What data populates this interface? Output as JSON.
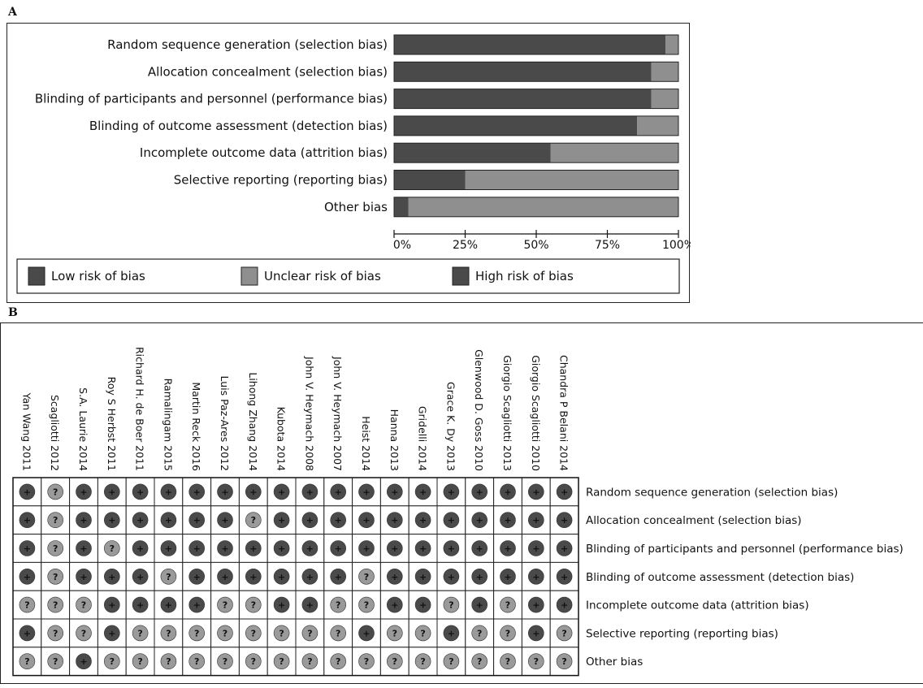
{
  "colors": {
    "low": "#4a4a4a",
    "unclear": "#8f8f8f",
    "high": "#4a4a4a",
    "bar_edge": "#222222"
  },
  "panel_a": {
    "letter": "A"
  },
  "panel_b": {
    "letter": "B"
  },
  "chart_data": [
    {
      "type": "bar",
      "orientation": "horizontal",
      "stacked": true,
      "categories": [
        "Random sequence generation (selection bias)",
        "Allocation concealment (selection bias)",
        "Blinding of participants and personnel (performance bias)",
        "Blinding of outcome assessment (detection bias)",
        "Incomplete outcome data (attrition bias)",
        "Selective reporting (reporting bias)",
        "Other bias"
      ],
      "series": [
        {
          "name": "Low risk of bias",
          "values": [
            95.5,
            90.5,
            90.5,
            85.5,
            55,
            25,
            5
          ],
          "color": "#4a4a4a"
        },
        {
          "name": "Unclear risk of bias",
          "values": [
            4.5,
            9.5,
            9.5,
            14.5,
            45,
            75,
            95
          ],
          "color": "#8f8f8f"
        },
        {
          "name": "High risk of bias",
          "values": [
            0,
            0,
            0,
            0,
            0,
            0,
            0
          ],
          "color": "#4a4a4a"
        }
      ],
      "xticks": [
        "0%",
        "25%",
        "50%",
        "75%",
        "100%"
      ],
      "xlim": [
        0,
        100
      ],
      "legend_position": "bottom"
    },
    {
      "type": "table",
      "studies": [
        "Yan Wang 2011",
        "Scagliotti 2012",
        "S.A. Laurie 2014",
        "Roy S Herbst 2011",
        "Richard H. de Boer 2011",
        "Ramalingam 2015",
        "Martin Reck 2016",
        "Luis Paz-Ares 2012",
        "Lihong Zhang 2014",
        "Kubota 2014",
        "John V. Heymach 2008",
        "John V. Heymach 2007",
        "Heist 2014",
        "Hanna 2013",
        "Gridelli 2014",
        "Grace K. Dy 2013",
        "Glenwood D. Goss 2010",
        "Giorgio Scagliotti 2013",
        "Giorgio Scagliotti 2010",
        "Chandra P Belani 2014"
      ],
      "domains": [
        "Random sequence generation (selection bias)",
        "Allocation concealment (selection bias)",
        "Blinding of participants and personnel (performance bias)",
        "Blinding of outcome assessment (detection bias)",
        "Incomplete outcome data (attrition bias)",
        "Selective reporting (reporting bias)",
        "Other bias"
      ],
      "judgements": [
        [
          "+",
          "?",
          "+",
          "+",
          "+",
          "+",
          "+",
          "+",
          "+",
          "+",
          "+",
          "+",
          "+",
          "+",
          "+",
          "+",
          "+",
          "+",
          "+",
          "+"
        ],
        [
          "+",
          "?",
          "+",
          "+",
          "+",
          "+",
          "+",
          "+",
          "?",
          "+",
          "+",
          "+",
          "+",
          "+",
          "+",
          "+",
          "+",
          "+",
          "+",
          "+"
        ],
        [
          "+",
          "?",
          "+",
          "?",
          "+",
          "+",
          "+",
          "+",
          "+",
          "+",
          "+",
          "+",
          "+",
          "+",
          "+",
          "+",
          "+",
          "+",
          "+",
          "+"
        ],
        [
          "+",
          "?",
          "+",
          "+",
          "+",
          "?",
          "+",
          "+",
          "+",
          "+",
          "+",
          "+",
          "?",
          "+",
          "+",
          "+",
          "+",
          "+",
          "+",
          "+"
        ],
        [
          "?",
          "?",
          "?",
          "+",
          "+",
          "+",
          "+",
          "?",
          "?",
          "+",
          "+",
          "?",
          "?",
          "+",
          "+",
          "?",
          "+",
          "?",
          "+",
          "+"
        ],
        [
          "+",
          "?",
          "?",
          "+",
          "?",
          "?",
          "?",
          "?",
          "?",
          "?",
          "?",
          "?",
          "+",
          "?",
          "?",
          "+",
          "?",
          "?",
          "+",
          "?"
        ],
        [
          "?",
          "?",
          "+",
          "?",
          "?",
          "?",
          "?",
          "?",
          "?",
          "?",
          "?",
          "?",
          "?",
          "?",
          "?",
          "?",
          "?",
          "?",
          "?",
          "?"
        ]
      ],
      "symbol_colors": {
        "+": "#4a4a4a",
        "?": "#9a9a9a"
      }
    }
  ]
}
